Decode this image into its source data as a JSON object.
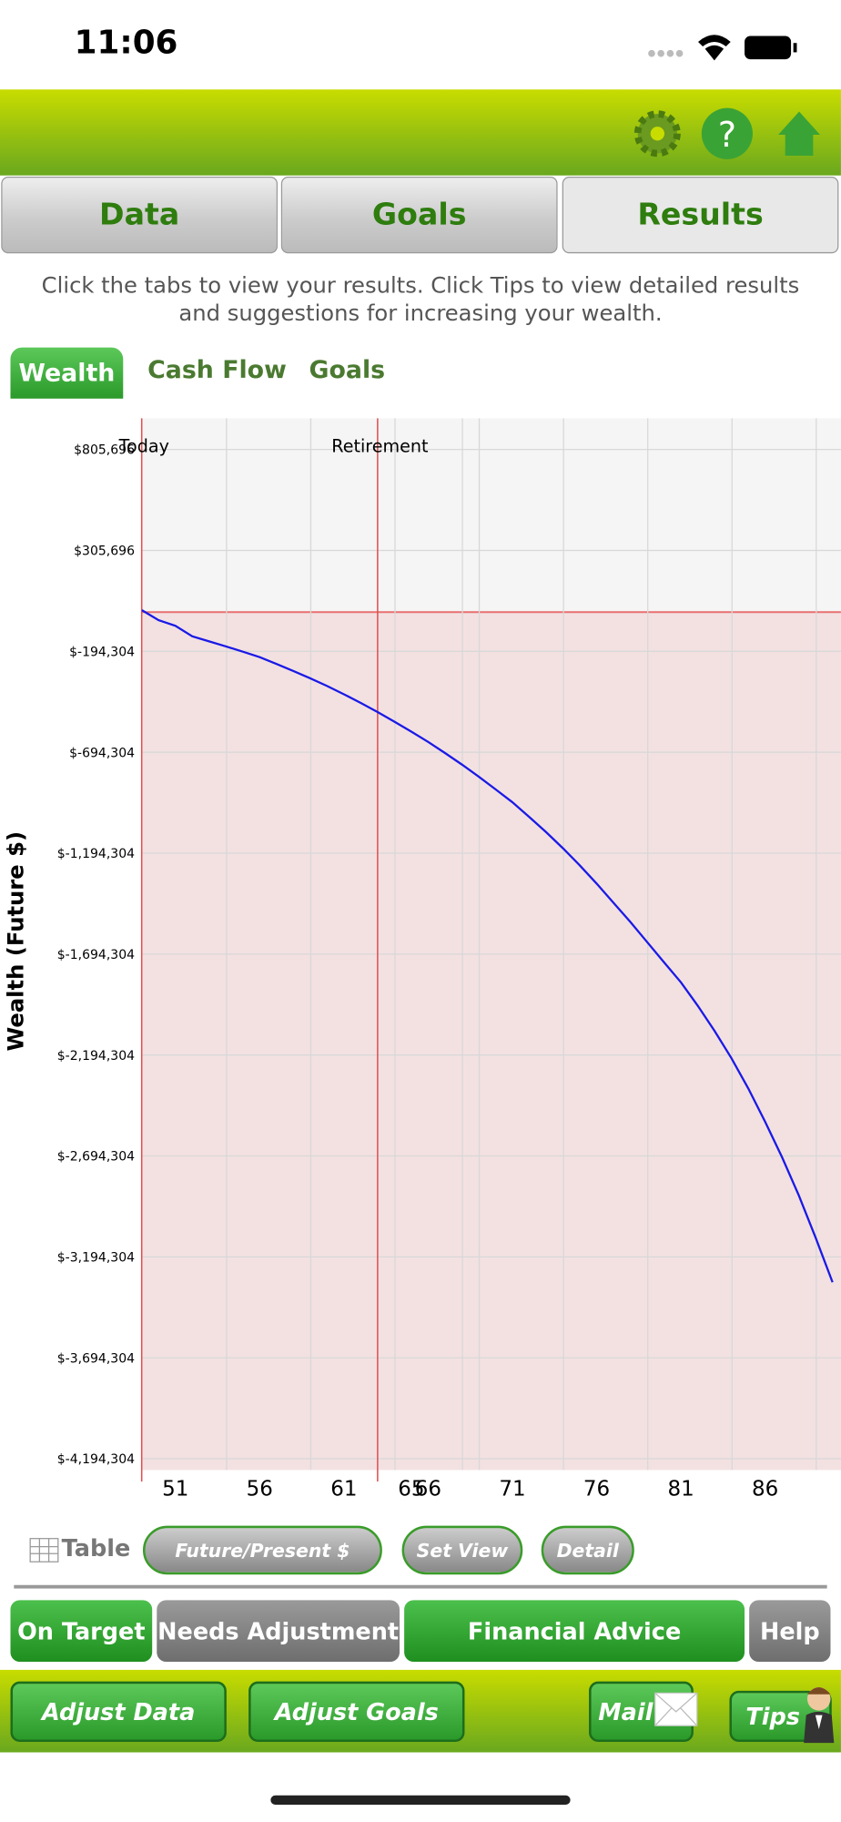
{
  "status_bar": {
    "time": "11:06"
  },
  "tabs": [
    "Data",
    "Goals",
    "Results"
  ],
  "instructions": "Click the tabs to view your results. Click Tips to view detailed results and suggestions for increasing your wealth.",
  "sub_tabs": [
    "Wealth",
    "Cash Flow",
    "Goals"
  ],
  "chart_data": {
    "type": "line",
    "y_label": "Wealth (Future $)",
    "x": [
      49,
      50,
      51,
      52,
      53,
      54,
      55,
      56,
      57,
      58,
      59,
      60,
      61,
      62,
      63,
      64,
      65,
      66,
      67,
      68,
      69,
      70,
      71,
      72,
      73,
      74,
      75,
      76,
      77,
      78,
      79,
      80,
      81,
      82,
      83,
      84,
      85,
      86,
      87,
      88,
      89,
      90
    ],
    "series": [
      {
        "color": "#1a1ae6",
        "values": [
          10000,
          -40000,
          -68000,
          -120000,
          -145000,
          -170000,
          -196000,
          -223000,
          -257000,
          -292000,
          -328000,
          -366000,
          -407000,
          -450000,
          -495000,
          -543000,
          -592000,
          -643000,
          -698000,
          -755000,
          -815000,
          -878000,
          -942000,
          -1015000,
          -1090000,
          -1170000,
          -1255000,
          -1345000,
          -1440000,
          -1535000,
          -1635000,
          -1735000,
          -1834000,
          -1950000,
          -2075000,
          -2210000,
          -2360000,
          -2525000,
          -2700000,
          -2890000,
          -3100000,
          -3320000
        ]
      }
    ],
    "xlim": [
      49,
      90.5
    ],
    "xticks": [
      51,
      56,
      61,
      65,
      66,
      71,
      76,
      81,
      86
    ],
    "ylim": [
      -4250000,
      960000
    ],
    "yticks": [
      {
        "value": 805696,
        "label": "$805,696"
      },
      {
        "value": 305696,
        "label": "$305,696"
      },
      {
        "value": -194304,
        "label": "$-194,304"
      },
      {
        "value": -694304,
        "label": "$-694,304"
      },
      {
        "value": -1194304,
        "label": "$-1,194,304"
      },
      {
        "value": -1694304,
        "label": "$-1,694,304"
      },
      {
        "value": -2194304,
        "label": "$-2,194,304"
      },
      {
        "value": -2694304,
        "label": "$-2,694,304"
      },
      {
        "value": -3194304,
        "label": "$-3,194,304"
      },
      {
        "value": -3694304,
        "label": "$-3,694,304"
      },
      {
        "value": -4194304,
        "label": "$-4,194,304"
      }
    ],
    "grid": true,
    "target_line": 0,
    "markers": [
      {
        "label": "Today",
        "x": 49
      },
      {
        "label": "Retirement",
        "x": 63
      }
    ]
  },
  "chart_buttons": [
    "Table",
    "Future/Present $",
    "Set View",
    "Detail"
  ],
  "status_buttons": [
    "On Target",
    "Needs Adjustment",
    "Financial Advice",
    "Help"
  ],
  "bottom_buttons": [
    "Adjust Data",
    "Adjust Goals",
    "Mail",
    "Tips"
  ]
}
